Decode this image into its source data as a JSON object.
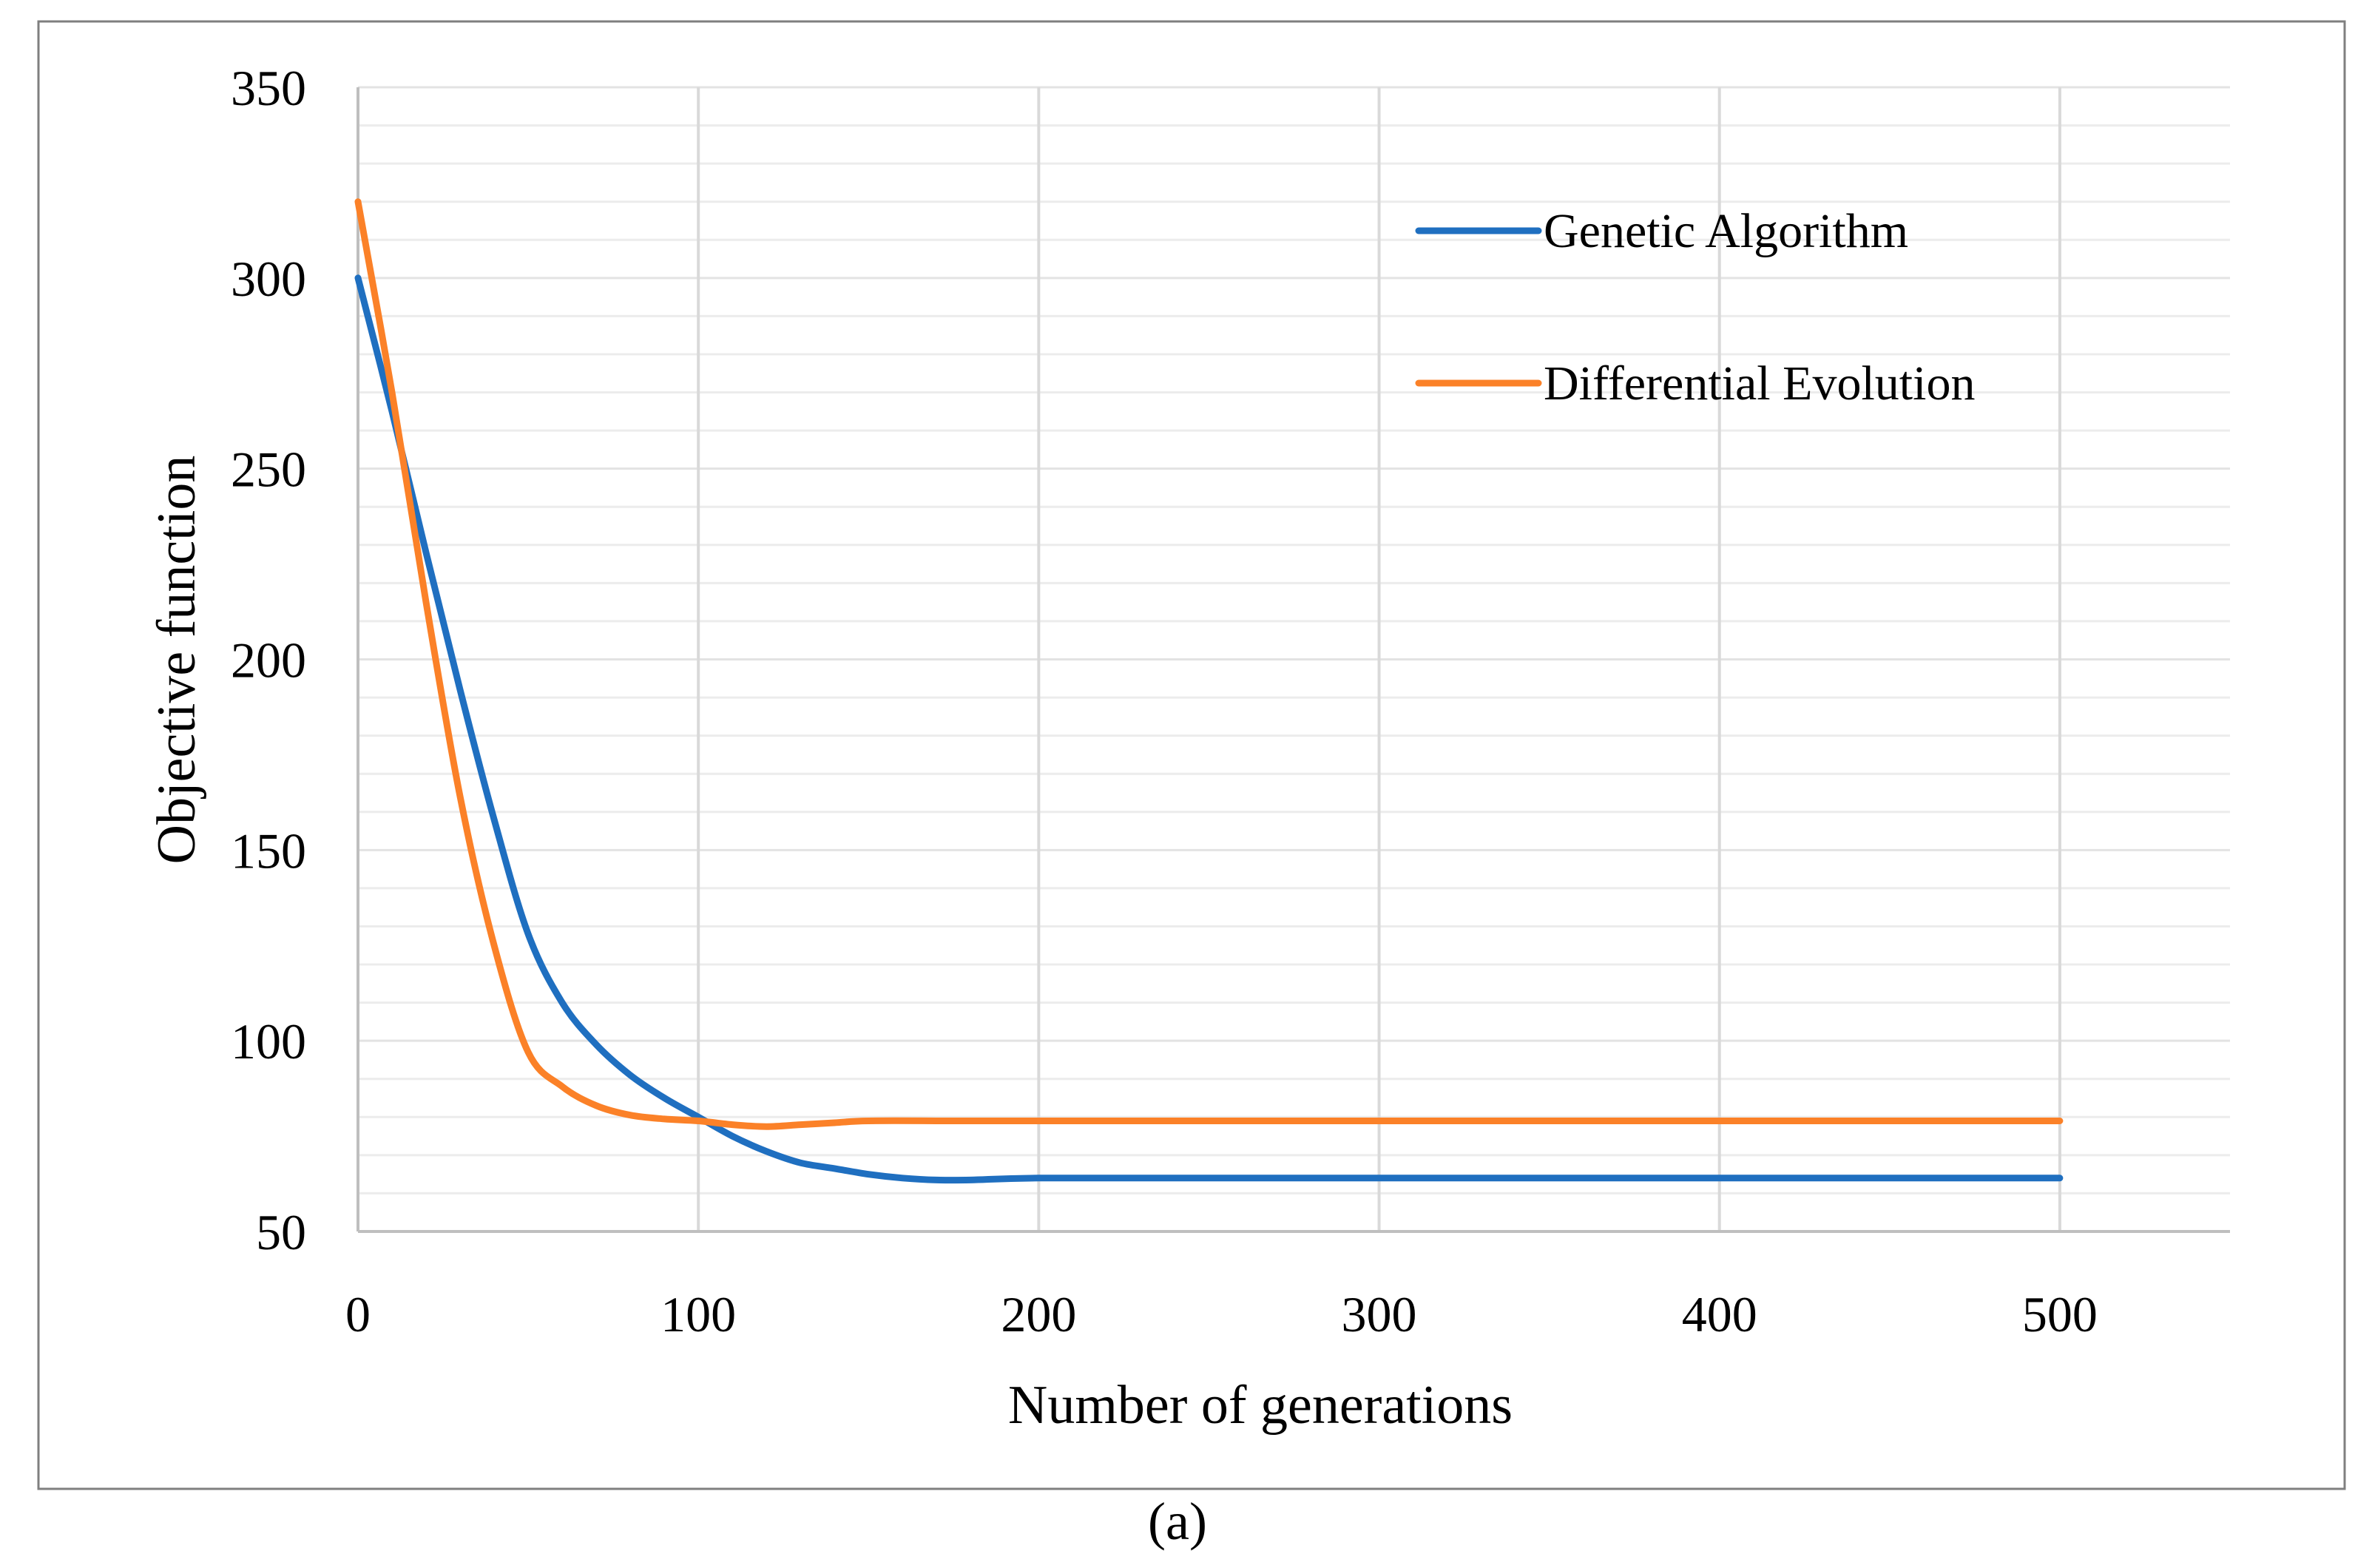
{
  "caption": "(a)",
  "colors": {
    "genetic_algorithm": "#1f6fc0",
    "differential_evolution": "#fb8128",
    "gridline": "#d9d9d9",
    "axis": "#bfbfbf",
    "frame": "#7f7f7f"
  },
  "chart_data": {
    "type": "line",
    "title": "",
    "xlabel": "Number of generations",
    "ylabel": "Objective function",
    "xlim": [
      0,
      550
    ],
    "ylim": [
      50,
      350
    ],
    "x_ticks": [
      0,
      100,
      200,
      300,
      400,
      500
    ],
    "y_ticks": [
      50,
      100,
      150,
      200,
      250,
      300,
      350
    ],
    "x_tick_labels": [
      "0",
      "100",
      "200",
      "300",
      "400",
      "500"
    ],
    "y_tick_labels": [
      "50",
      "100",
      "150",
      "200",
      "250",
      "300",
      "350"
    ],
    "grid": true,
    "legend_position": "top-right",
    "series": [
      {
        "name": "Genetic Algorithm",
        "color": "#1f6fc0",
        "x": [
          0,
          10,
          20,
          30,
          40,
          50,
          60,
          70,
          80,
          90,
          100,
          110,
          120,
          130,
          140,
          150,
          160,
          170,
          180,
          200,
          250,
          300,
          350,
          400,
          450,
          500
        ],
        "y": [
          300,
          265,
          228,
          192,
          158,
          128,
          110,
          99,
          91,
          85,
          80,
          75,
          71,
          68,
          66.5,
          65,
          64,
          63.5,
          63.5,
          64,
          64,
          64,
          64,
          64,
          64,
          64
        ]
      },
      {
        "name": "Differential Evolution",
        "color": "#fb8128",
        "x": [
          0,
          10,
          20,
          30,
          40,
          50,
          60,
          70,
          80,
          90,
          100,
          110,
          120,
          130,
          140,
          150,
          175,
          200,
          250,
          300,
          350,
          400,
          450,
          500
        ],
        "y": [
          320,
          270,
          215,
          164,
          125,
          97,
          88,
          83,
          80.5,
          79.5,
          79,
          78,
          77.5,
          78,
          78.5,
          79,
          79,
          79,
          79,
          79,
          79,
          79,
          79,
          79
        ]
      }
    ]
  }
}
